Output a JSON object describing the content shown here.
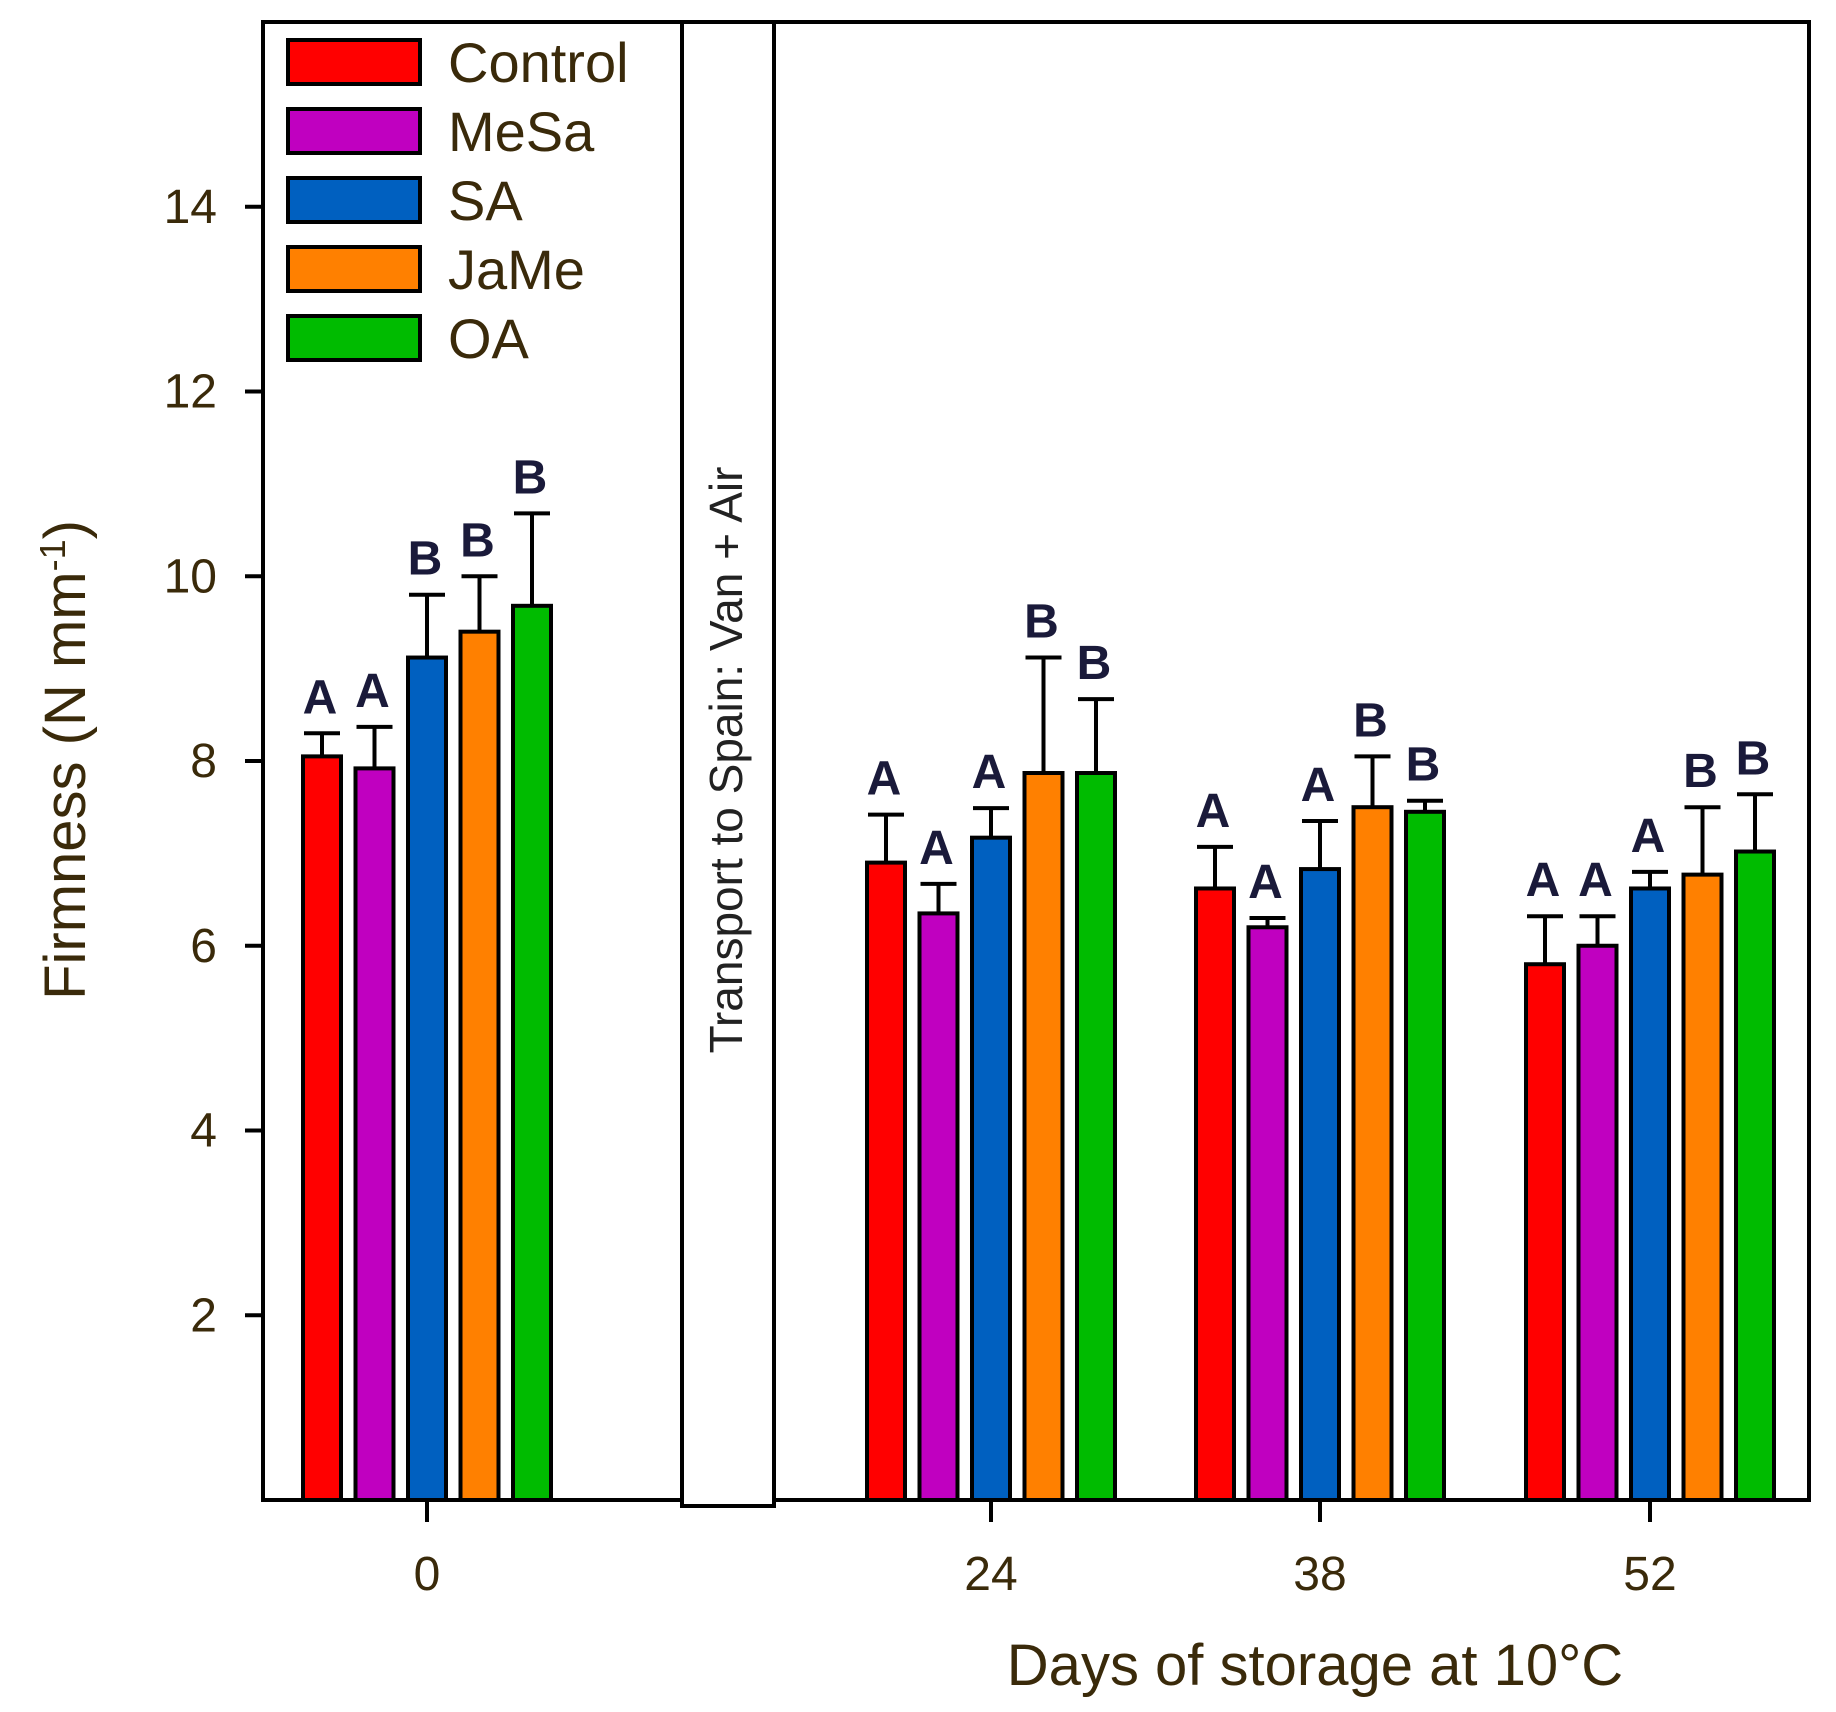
{
  "chart_data": {
    "type": "bar",
    "xlabel": "Days of storage at 10°C",
    "ylabel": "Firmness (N mm",
    "ylabel_sup": "-1",
    "ylabel_close": ")",
    "ylim": [
      0,
      16
    ],
    "yticks": [
      2,
      4,
      6,
      8,
      10,
      12,
      14
    ],
    "categories": [
      "0",
      "24",
      "38",
      "52"
    ],
    "legend_position": "top-left",
    "transport_label": "Transport to Spain: Van + Air",
    "series": [
      {
        "name": "Control",
        "color": "#ff0000",
        "values": [
          8.05,
          6.9,
          6.62,
          5.8
        ],
        "errors": [
          0.25,
          0.52,
          0.45,
          0.52
        ],
        "letters": [
          "A",
          "A",
          "A",
          "A"
        ]
      },
      {
        "name": "MeSa",
        "color": "#c000c0",
        "values": [
          7.92,
          6.35,
          6.2,
          6.0
        ],
        "errors": [
          0.45,
          0.32,
          0.1,
          0.32
        ],
        "letters": [
          "A",
          "A",
          "A",
          "A"
        ]
      },
      {
        "name": "SA",
        "color": "#0060c0",
        "values": [
          9.12,
          7.17,
          6.83,
          6.62
        ],
        "errors": [
          0.68,
          0.32,
          0.52,
          0.18
        ],
        "letters": [
          "B",
          "A",
          "A",
          "A"
        ]
      },
      {
        "name": "JaMe",
        "color": "#ff8000",
        "values": [
          9.4,
          7.87,
          7.5,
          6.77
        ],
        "errors": [
          0.6,
          1.25,
          0.55,
          0.73
        ],
        "letters": [
          "B",
          "B",
          "B",
          "B"
        ]
      },
      {
        "name": "OA",
        "color": "#00bb00",
        "values": [
          9.68,
          7.87,
          7.45,
          7.02
        ],
        "errors": [
          1.0,
          0.8,
          0.12,
          0.62
        ],
        "letters": [
          "B",
          "B",
          "B",
          "B"
        ]
      }
    ]
  }
}
